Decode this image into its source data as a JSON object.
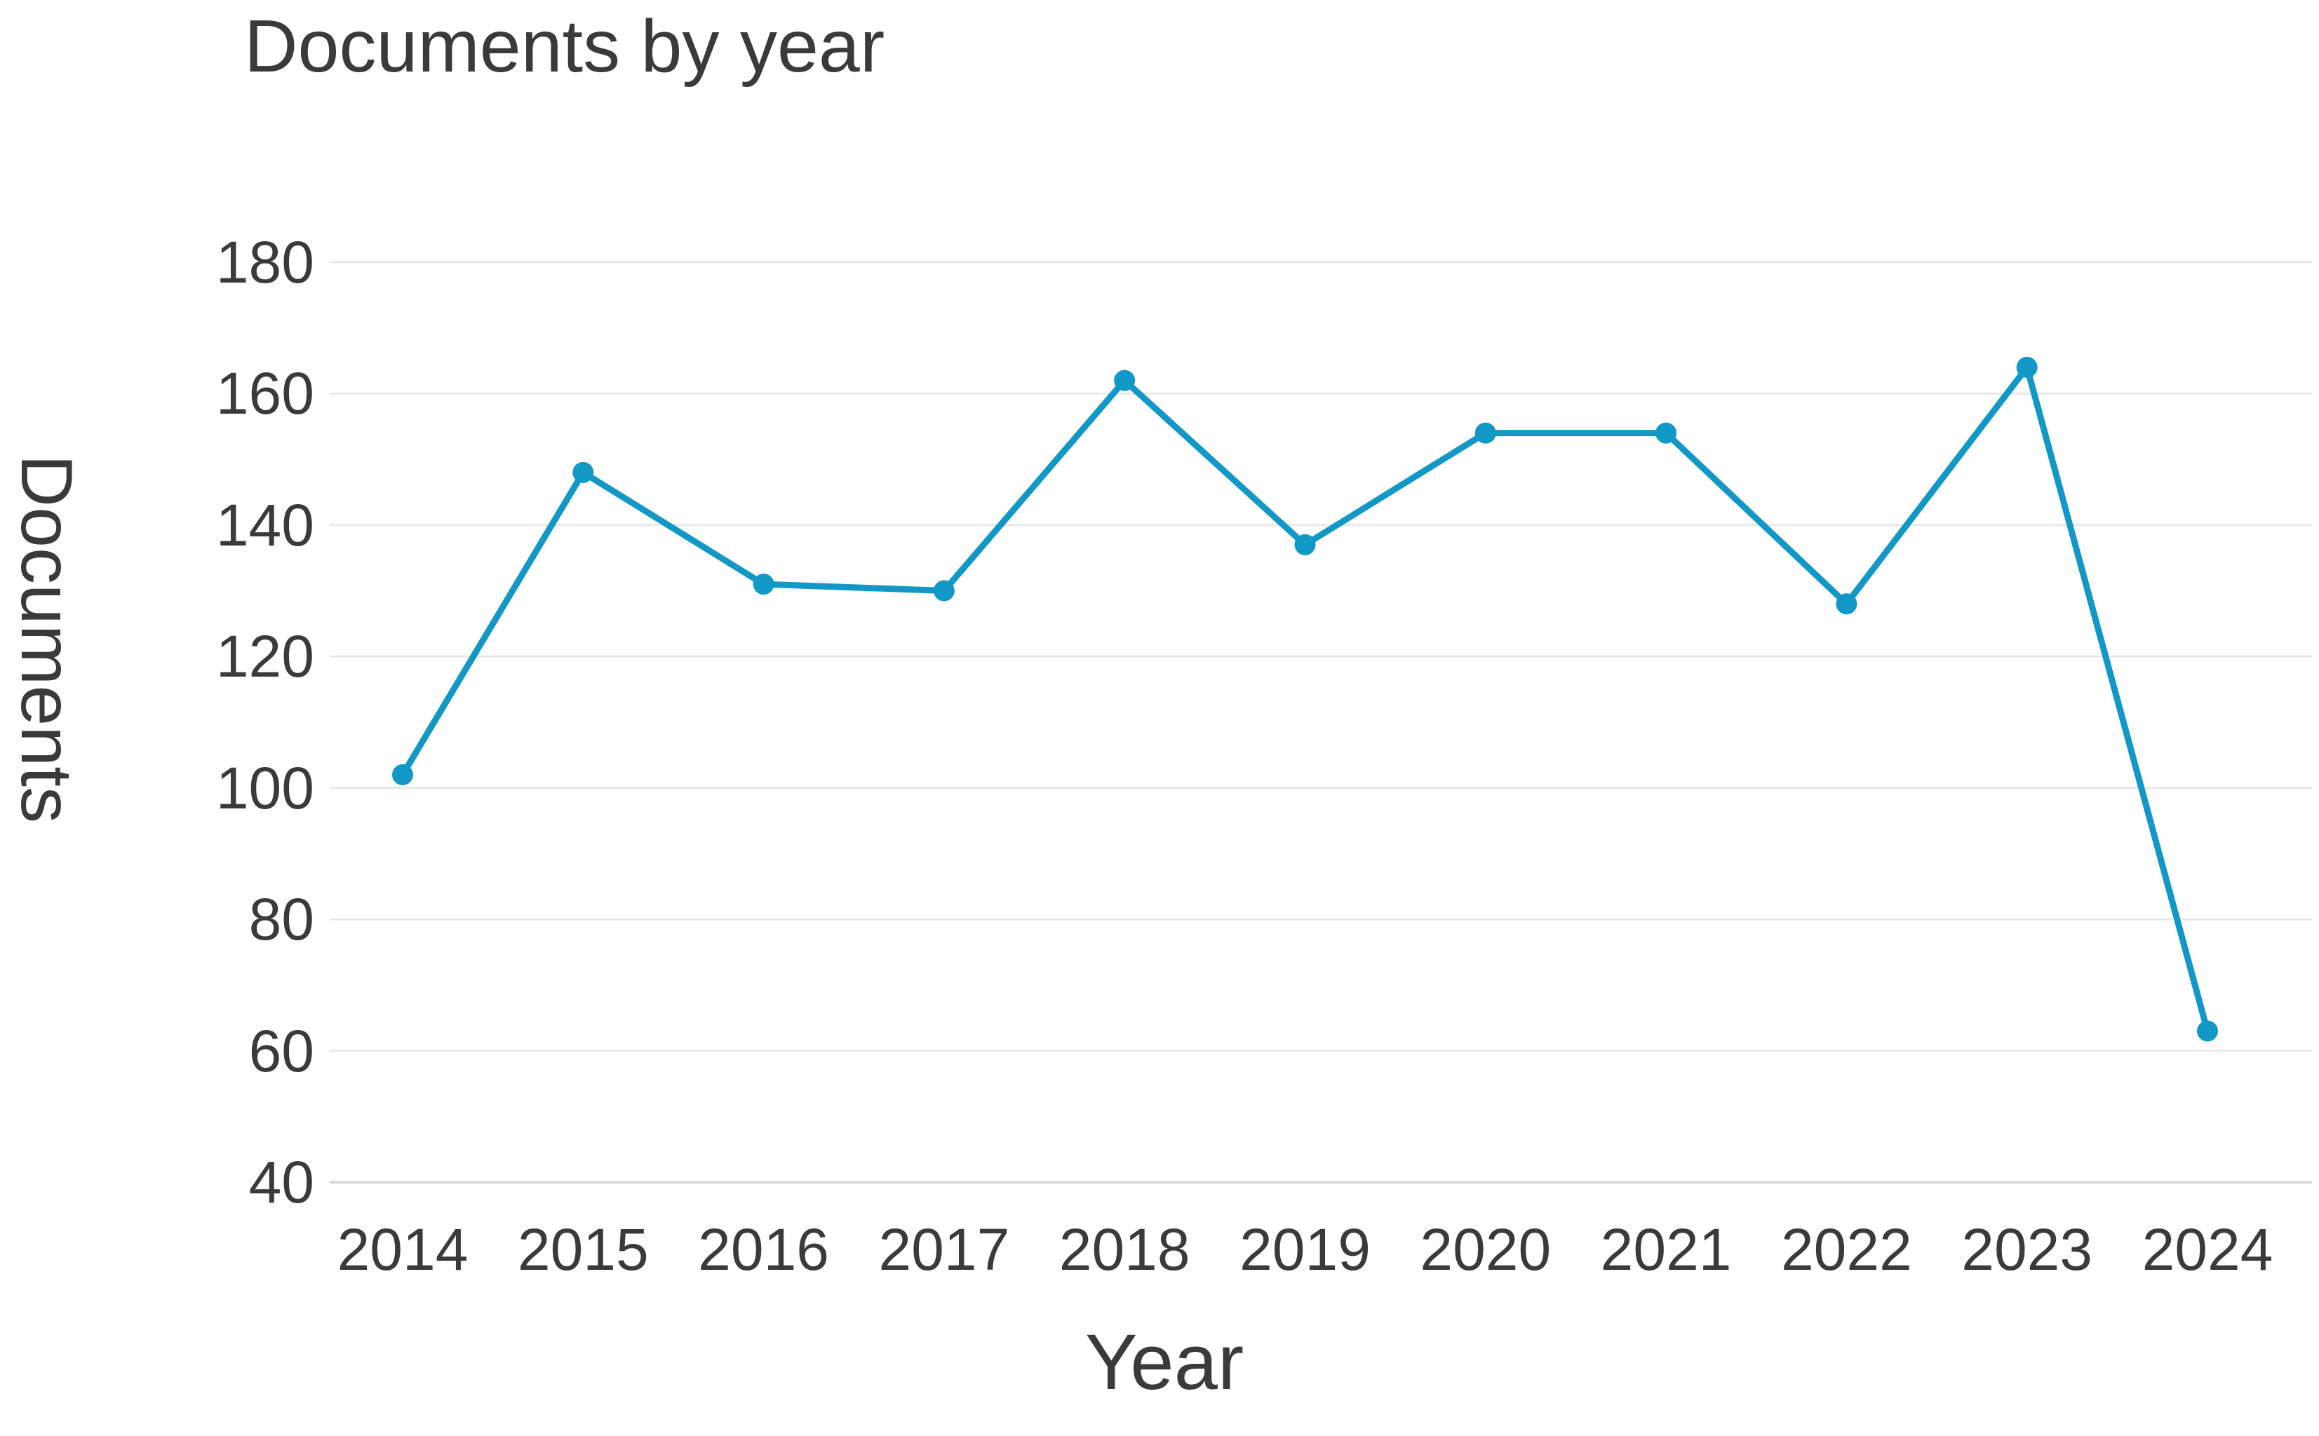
{
  "title": "Documents by year",
  "y_axis": {
    "label": "Documents"
  },
  "x_axis": {
    "label": "Year"
  },
  "colors": {
    "line": "#1298c6",
    "marker": "#1298c6",
    "grid": "#e8e8e8",
    "axis_line": "#d8d8d8",
    "text": "#3a3a3a",
    "background": "#ffffff"
  },
  "chart_data": {
    "type": "line",
    "title": "Documents by year",
    "xlabel": "Year",
    "ylabel": "Documents",
    "categories": [
      "2014",
      "2015",
      "2016",
      "2017",
      "2018",
      "2019",
      "2020",
      "2021",
      "2022",
      "2023",
      "2024"
    ],
    "series": [
      {
        "name": "Documents",
        "values": [
          102,
          148,
          131,
          130,
          162,
          137,
          154,
          154,
          128,
          164,
          63
        ]
      }
    ],
    "ylim": [
      40,
      180
    ],
    "yticks": [
      40,
      60,
      80,
      100,
      120,
      140,
      160,
      180
    ],
    "grid": "horizontal-only",
    "legend": "none",
    "marker": "circle",
    "line_color": "#1298c6"
  }
}
